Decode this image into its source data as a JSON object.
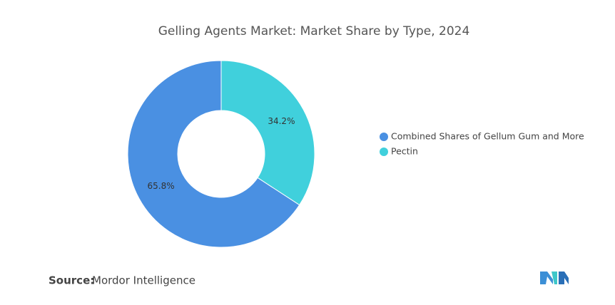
{
  "chart_data": {
    "type": "pie",
    "title": "Gelling Agents Market: Market Share by Type, 2024",
    "categories": [
      "Combined Shares of Gellum Gum and More",
      "Pectin"
    ],
    "values": [
      65.8,
      34.2
    ],
    "value_labels": [
      "65.8%",
      "34.2%"
    ],
    "colors": [
      "#4a90e2",
      "#40d0dc"
    ],
    "donut": true,
    "legend": "right"
  },
  "source": {
    "label": "Source:",
    "text": "Mordor Intelligence"
  }
}
